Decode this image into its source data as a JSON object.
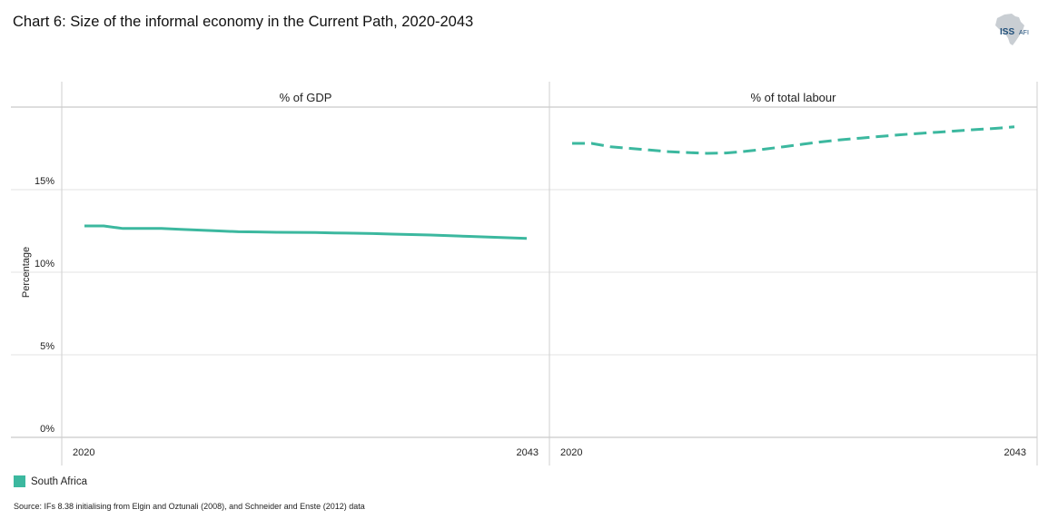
{
  "header": {
    "title": "Chart 6: Size of the informal economy in the Current Path, 2020-2043",
    "logo_text": "ISS",
    "logo_suffix": "AFI"
  },
  "legend": {
    "label": "South Africa",
    "color": "#3cb89f"
  },
  "source": "Source: IFs 8.38 initialising  from Elgin and Oztunali (2008), and Schneider and Enste (2012) data",
  "chart_data": {
    "type": "line",
    "ylabel": "Percentage",
    "ylim": [
      0,
      20
    ],
    "yticks": [
      0,
      5,
      10,
      15
    ],
    "ytick_labels": [
      "0%",
      "5%",
      "10%",
      "15%"
    ],
    "xlim": [
      2020,
      2043
    ],
    "xtick_labels": [
      "2020",
      "2043"
    ],
    "panels": [
      {
        "name": "% of GDP",
        "series": [
          {
            "name": "South Africa",
            "color": "#3cb89f",
            "dashed": false,
            "x": [
              2020,
              2021,
              2022,
              2023,
              2024,
              2025,
              2026,
              2027,
              2028,
              2029,
              2030,
              2031,
              2032,
              2033,
              2034,
              2035,
              2036,
              2037,
              2038,
              2039,
              2040,
              2041,
              2042,
              2043
            ],
            "y": [
              12.8,
              12.8,
              12.65,
              12.65,
              12.65,
              12.6,
              12.55,
              12.5,
              12.45,
              12.44,
              12.42,
              12.41,
              12.4,
              12.38,
              12.36,
              12.34,
              12.31,
              12.28,
              12.25,
              12.21,
              12.17,
              12.13,
              12.09,
              12.05
            ]
          }
        ]
      },
      {
        "name": "% of total labour",
        "series": [
          {
            "name": "South Africa",
            "color": "#3cb89f",
            "dashed": true,
            "x": [
              2020,
              2021,
              2022,
              2023,
              2024,
              2025,
              2026,
              2027,
              2028,
              2029,
              2030,
              2031,
              2032,
              2033,
              2034,
              2035,
              2036,
              2037,
              2038,
              2039,
              2040,
              2041,
              2042,
              2043
            ],
            "y": [
              17.8,
              17.8,
              17.6,
              17.5,
              17.4,
              17.3,
              17.25,
              17.2,
              17.22,
              17.32,
              17.45,
              17.6,
              17.75,
              17.9,
              18.02,
              18.12,
              18.22,
              18.32,
              18.4,
              18.48,
              18.56,
              18.64,
              18.71,
              18.8
            ]
          }
        ]
      }
    ]
  }
}
